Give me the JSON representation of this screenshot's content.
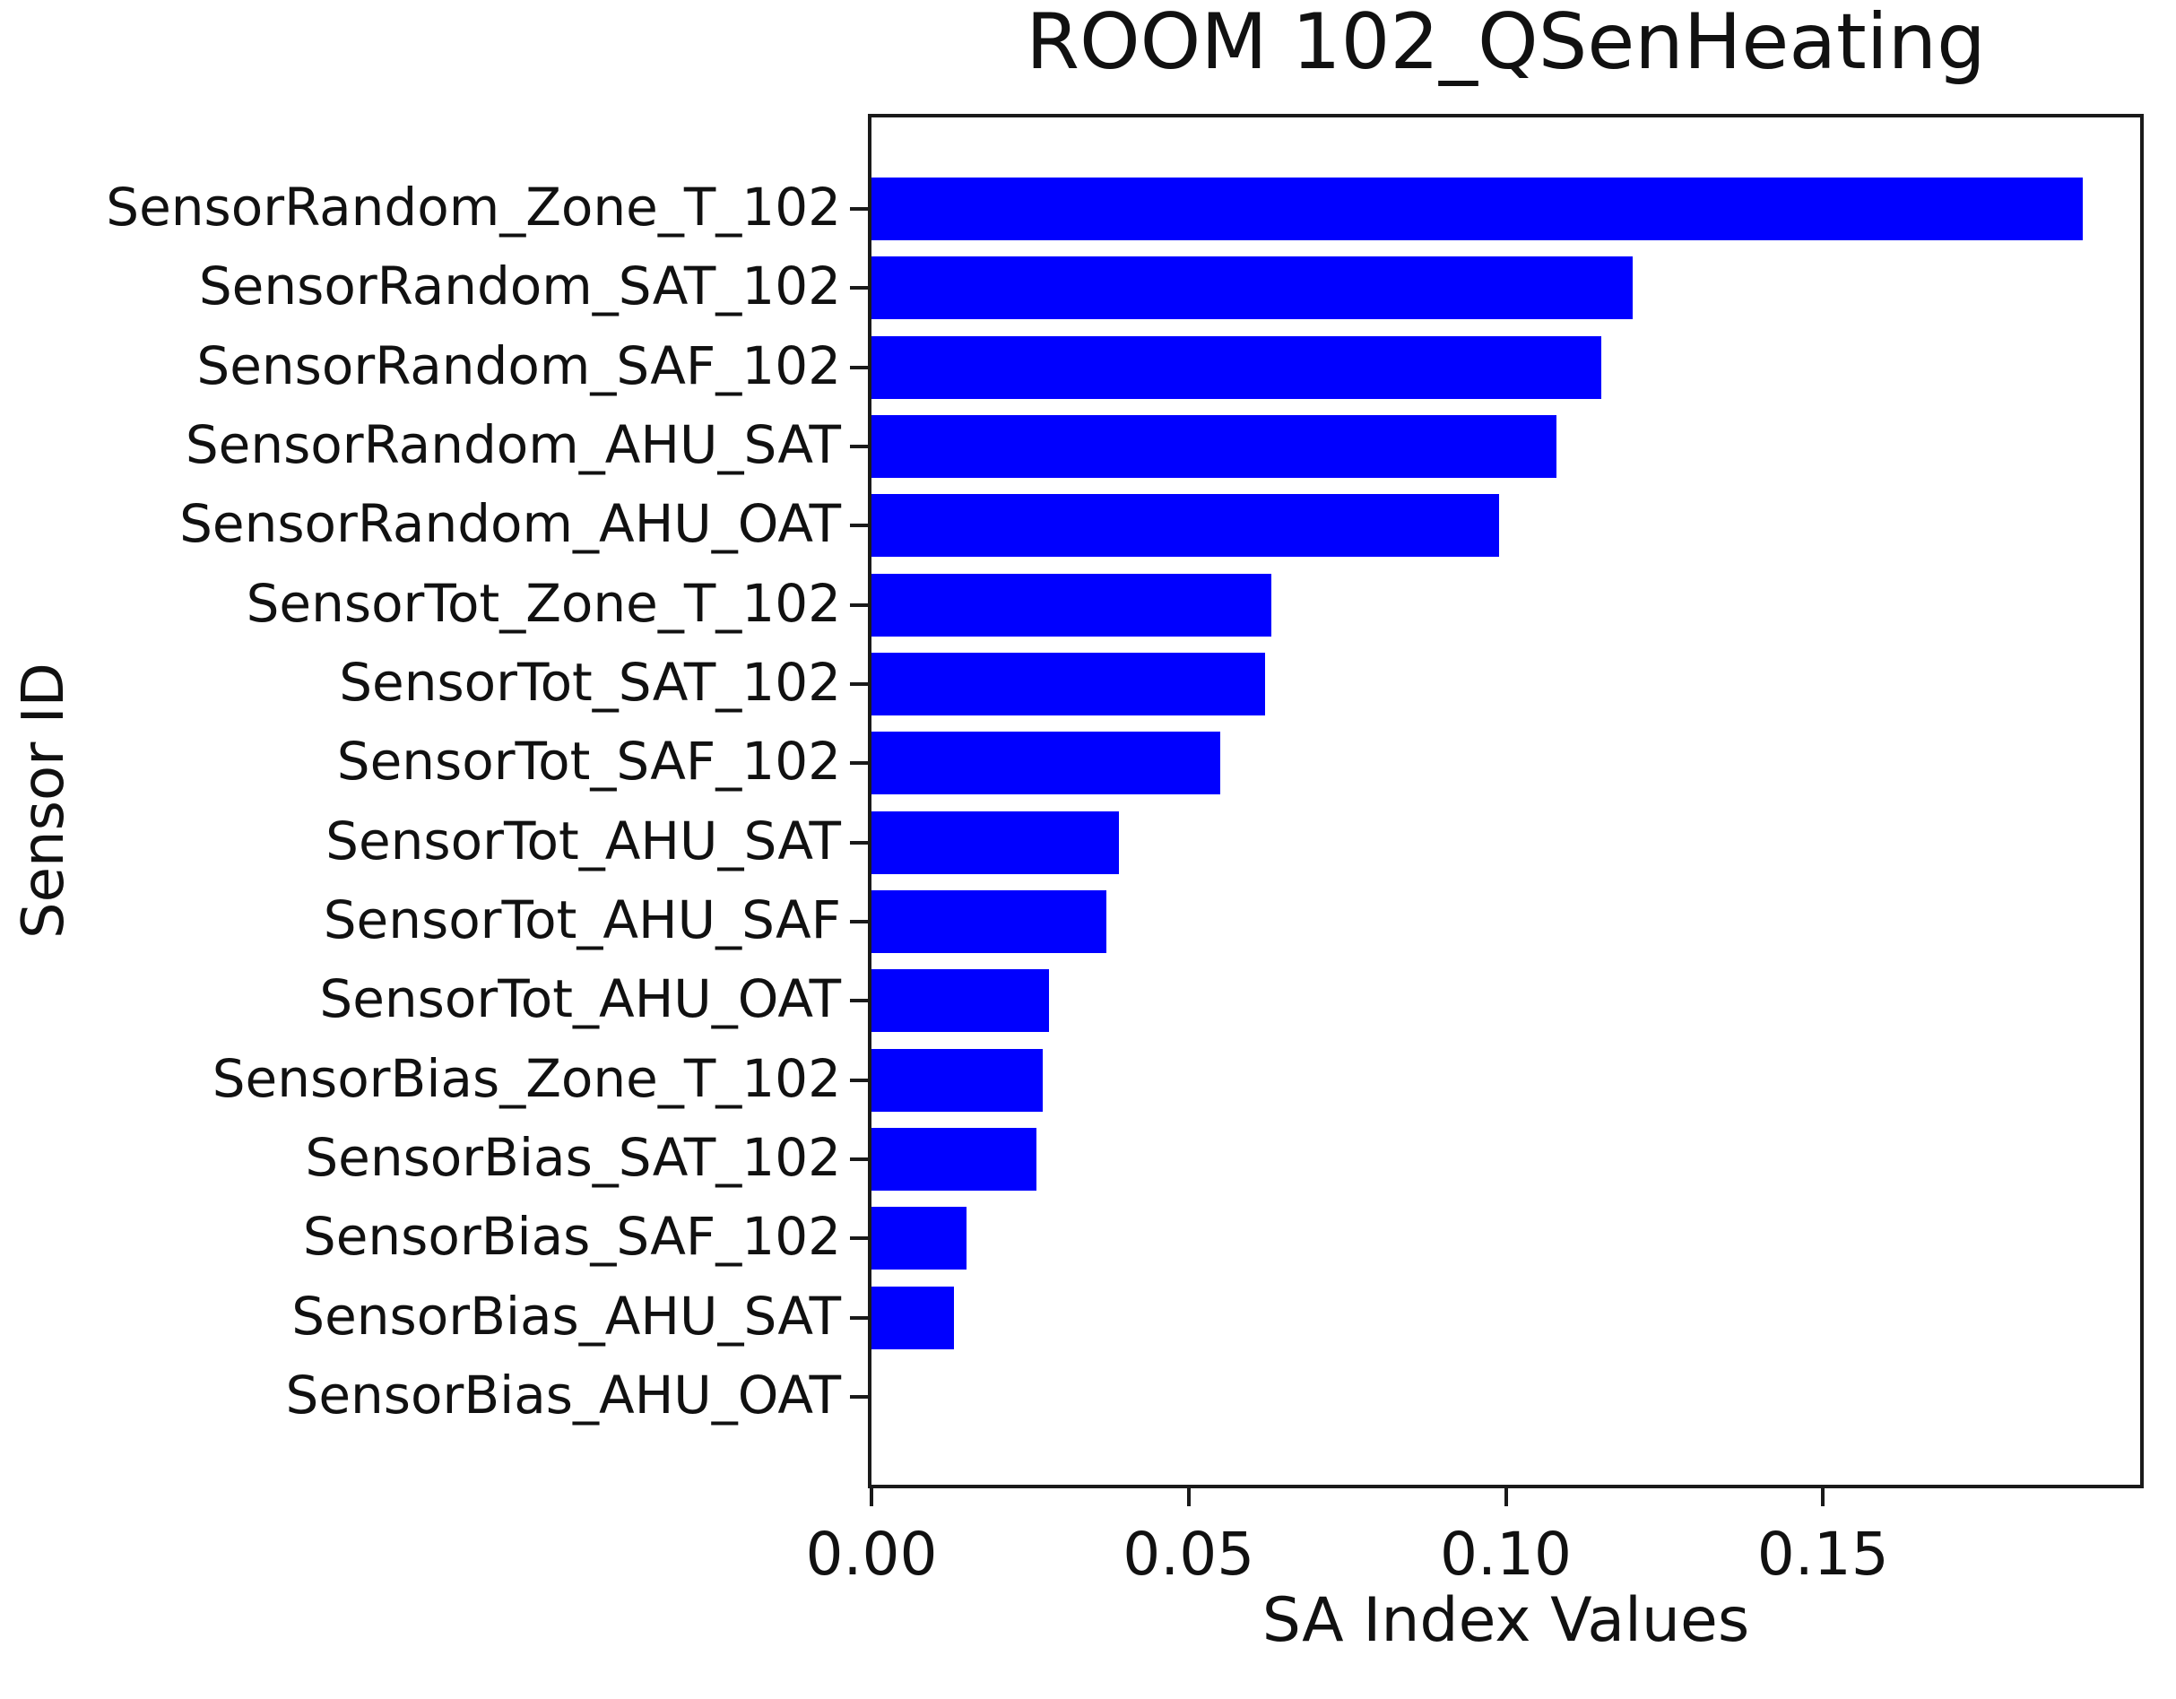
{
  "chart_data": {
    "type": "bar",
    "orientation": "horizontal",
    "title": "ROOM 102_QSenHeating",
    "xlabel": "SA Index Values",
    "ylabel": "Sensor ID",
    "categories": [
      "SensorRandom_Zone_T_102",
      "SensorRandom_SAT_102",
      "SensorRandom_SAF_102",
      "SensorRandom_AHU_SAT",
      "SensorRandom_AHU_OAT",
      "SensorTot_Zone_T_102",
      "SensorTot_SAT_102",
      "SensorTot_SAF_102",
      "SensorTot_AHU_SAT",
      "SensorTot_AHU_SAF",
      "SensorTot_AHU_OAT",
      "SensorBias_Zone_T_102",
      "SensorBias_SAT_102",
      "SensorBias_SAF_102",
      "SensorBias_AHU_SAT",
      "SensorBias_AHU_OAT"
    ],
    "values": [
      0.191,
      0.12,
      0.115,
      0.108,
      0.099,
      0.063,
      0.062,
      0.055,
      0.039,
      0.037,
      0.028,
      0.027,
      0.026,
      0.015,
      0.013,
      0.0
    ],
    "xlim": [
      0,
      0.2
    ],
    "xtick_labels": [
      "0.00",
      "0.05",
      "0.10",
      "0.15"
    ],
    "xtick_values": [
      0,
      0.05,
      0.1,
      0.15
    ],
    "bar_color": "#0000ff",
    "axis_color": "#1a1a1a",
    "grid": false,
    "legend": null
  }
}
